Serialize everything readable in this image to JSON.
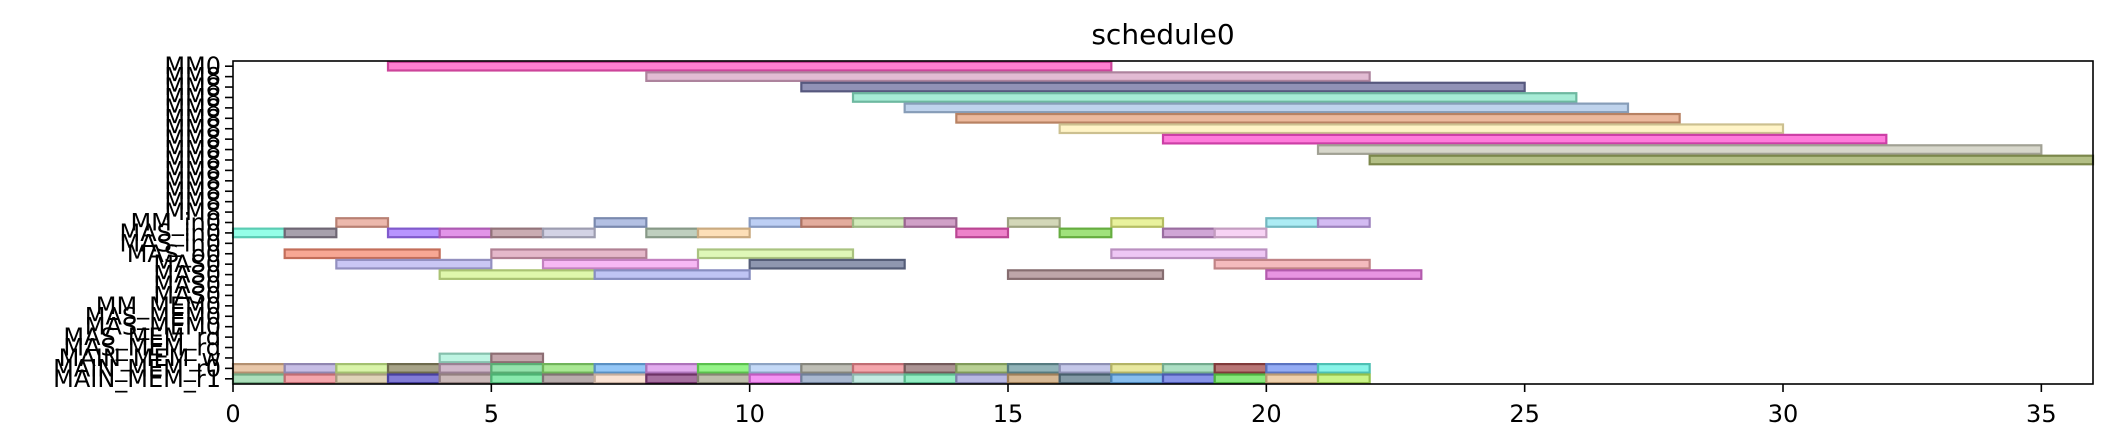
{
  "chart_data": {
    "type": "gantt",
    "title": "schedule0",
    "xlabel": "",
    "ylabel": "",
    "xlim": [
      0,
      36
    ],
    "x_ticks": [
      0,
      5,
      10,
      15,
      20,
      25,
      30,
      35
    ],
    "grid": false,
    "legend": "none",
    "rows_top_to_bottom": [
      "MM0",
      "MM8",
      "MM8",
      "MM8",
      "MM8",
      "MM8",
      "MM8",
      "MM8",
      "MM8",
      "MM8",
      "MM8",
      "MM8",
      "MM8",
      "MM8",
      "MM8",
      "MM_in0",
      "MAS_in0",
      "MAS_in0",
      "MAS_o0",
      "MAS0",
      "MAS0",
      "MAS0",
      "MAS0",
      "MM_MEM0",
      "MAS_MEM0",
      "MAS_MEM0",
      "MAS_MEM_rd",
      "MAS_MEM_rd",
      "MAIN_MEM_w",
      "MAIN_MEM_r0",
      "MAIN_MEM_r1"
    ],
    "tasks": [
      {
        "row": 0,
        "start": 3,
        "end": 17,
        "color": "#ff55c0"
      },
      {
        "row": 1,
        "start": 8,
        "end": 22,
        "color": "#d8a4c4"
      },
      {
        "row": 2,
        "start": 11,
        "end": 25,
        "color": "#6c6e9e"
      },
      {
        "row": 3,
        "start": 12,
        "end": 26,
        "color": "#8ae6c8"
      },
      {
        "row": 4,
        "start": 13,
        "end": 27,
        "color": "#a9c4e6"
      },
      {
        "row": 5,
        "start": 14,
        "end": 28,
        "color": "#e6a27c"
      },
      {
        "row": 6,
        "start": 16,
        "end": 30,
        "color": "#fff0b4"
      },
      {
        "row": 7,
        "start": 18,
        "end": 32,
        "color": "#ff4fcf"
      },
      {
        "row": 8,
        "start": 21,
        "end": 35,
        "color": "#c9c9b9"
      },
      {
        "row": 9,
        "start": 22,
        "end": 36,
        "color": "#9aa95e"
      },
      {
        "row": 15,
        "start": 2,
        "end": 3,
        "color": "#e6a090"
      },
      {
        "row": 15,
        "start": 7,
        "end": 8,
        "color": "#99abd9"
      },
      {
        "row": 15,
        "start": 10,
        "end": 11,
        "color": "#a7bff0"
      },
      {
        "row": 15,
        "start": 11,
        "end": 12,
        "color": "#d9907c"
      },
      {
        "row": 15,
        "start": 12,
        "end": 13,
        "color": "#c4e6a4"
      },
      {
        "row": 15,
        "start": 13,
        "end": 14,
        "color": "#c080b4"
      },
      {
        "row": 15,
        "start": 15,
        "end": 16,
        "color": "#c4caa0"
      },
      {
        "row": 15,
        "start": 17,
        "end": 18,
        "color": "#e2ee7c"
      },
      {
        "row": 15,
        "start": 20,
        "end": 21,
        "color": "#90e6f0"
      },
      {
        "row": 15,
        "start": 21,
        "end": 22,
        "color": "#c4a4ee"
      },
      {
        "row": 16,
        "start": 0,
        "end": 1,
        "color": "#70ffe0"
      },
      {
        "row": 16,
        "start": 1,
        "end": 2,
        "color": "#8a8090"
      },
      {
        "row": 16,
        "start": 3,
        "end": 4,
        "color": "#a070ff"
      },
      {
        "row": 16,
        "start": 4,
        "end": 5,
        "color": "#d870e0"
      },
      {
        "row": 16,
        "start": 5,
        "end": 6,
        "color": "#b89098"
      },
      {
        "row": 16,
        "start": 6,
        "end": 7,
        "color": "#c4c4dc"
      },
      {
        "row": 16,
        "start": 8,
        "end": 9,
        "color": "#a9bfa9"
      },
      {
        "row": 16,
        "start": 9,
        "end": 10,
        "color": "#fcd4a0"
      },
      {
        "row": 16,
        "start": 14,
        "end": 15,
        "color": "#e858b8"
      },
      {
        "row": 16,
        "start": 16,
        "end": 17,
        "color": "#80d850"
      },
      {
        "row": 16,
        "start": 18,
        "end": 19,
        "color": "#c088c8"
      },
      {
        "row": 16,
        "start": 19,
        "end": 20,
        "color": "#f4c4f0"
      },
      {
        "row": 18,
        "start": 1,
        "end": 4,
        "color": "#f48a70"
      },
      {
        "row": 18,
        "start": 5,
        "end": 8,
        "color": "#dca0b8"
      },
      {
        "row": 18,
        "start": 9,
        "end": 12,
        "color": "#d4f4a0"
      },
      {
        "row": 18,
        "start": 17,
        "end": 20,
        "color": "#e8b4f0"
      },
      {
        "row": 19,
        "start": 2,
        "end": 5,
        "color": "#b8b4f0"
      },
      {
        "row": 19,
        "start": 6,
        "end": 9,
        "color": "#f4a0f0"
      },
      {
        "row": 19,
        "start": 10,
        "end": 13,
        "color": "#6a7496"
      },
      {
        "row": 19,
        "start": 19,
        "end": 22,
        "color": "#f0a4a8"
      },
      {
        "row": 20,
        "start": 4,
        "end": 7,
        "color": "#d4f490"
      },
      {
        "row": 20,
        "start": 7,
        "end": 10,
        "color": "#a9b0f0"
      },
      {
        "row": 20,
        "start": 15,
        "end": 18,
        "color": "#a8888c"
      },
      {
        "row": 20,
        "start": 20,
        "end": 23,
        "color": "#e070d8"
      },
      {
        "row": 28,
        "start": 4,
        "end": 5,
        "color": "#a8f0d8"
      },
      {
        "row": 28,
        "start": 5,
        "end": 6,
        "color": "#b08890"
      },
      {
        "row": 29,
        "start": 0,
        "end": 1,
        "color": "#e0b48c"
      },
      {
        "row": 29,
        "start": 1,
        "end": 2,
        "color": "#b4a8dc"
      },
      {
        "row": 29,
        "start": 2,
        "end": 3,
        "color": "#ccf08c"
      },
      {
        "row": 29,
        "start": 3,
        "end": 4,
        "color": "#8a8460"
      },
      {
        "row": 29,
        "start": 4,
        "end": 5,
        "color": "#c0a0b8"
      },
      {
        "row": 29,
        "start": 5,
        "end": 6,
        "color": "#70d890"
      },
      {
        "row": 29,
        "start": 6,
        "end": 7,
        "color": "#8ce070"
      },
      {
        "row": 29,
        "start": 7,
        "end": 8,
        "color": "#70b4f4"
      },
      {
        "row": 29,
        "start": 8,
        "end": 9,
        "color": "#d890e8"
      },
      {
        "row": 29,
        "start": 9,
        "end": 10,
        "color": "#70f060"
      },
      {
        "row": 29,
        "start": 10,
        "end": 11,
        "color": "#b0ccf4"
      },
      {
        "row": 29,
        "start": 11,
        "end": 12,
        "color": "#a8a89c"
      },
      {
        "row": 29,
        "start": 12,
        "end": 13,
        "color": "#f08890"
      },
      {
        "row": 29,
        "start": 13,
        "end": 14,
        "color": "#907070"
      },
      {
        "row": 29,
        "start": 14,
        "end": 15,
        "color": "#a0c070"
      },
      {
        "row": 29,
        "start": 15,
        "end": 16,
        "color": "#6c9aa0"
      },
      {
        "row": 29,
        "start": 16,
        "end": 17,
        "color": "#b0b4e0"
      },
      {
        "row": 29,
        "start": 17,
        "end": 18,
        "color": "#e0e080"
      },
      {
        "row": 29,
        "start": 18,
        "end": 19,
        "color": "#90d4b0"
      },
      {
        "row": 29,
        "start": 19,
        "end": 20,
        "color": "#a04848"
      },
      {
        "row": 29,
        "start": 20,
        "end": 21,
        "color": "#7090f0"
      },
      {
        "row": 29,
        "start": 21,
        "end": 22,
        "color": "#60f0e0"
      },
      {
        "row": 30,
        "start": 0,
        "end": 1,
        "color": "#90d4a4"
      },
      {
        "row": 30,
        "start": 1,
        "end": 2,
        "color": "#f08890"
      },
      {
        "row": 30,
        "start": 2,
        "end": 3,
        "color": "#d4c4a0"
      },
      {
        "row": 30,
        "start": 3,
        "end": 4,
        "color": "#5a50c8"
      },
      {
        "row": 30,
        "start": 4,
        "end": 5,
        "color": "#b8a0a0"
      },
      {
        "row": 30,
        "start": 5,
        "end": 6,
        "color": "#60e090"
      },
      {
        "row": 30,
        "start": 6,
        "end": 7,
        "color": "#a09090"
      },
      {
        "row": 30,
        "start": 7,
        "end": 8,
        "color": "#f8d8c4"
      },
      {
        "row": 30,
        "start": 8,
        "end": 9,
        "color": "#8a4080"
      },
      {
        "row": 30,
        "start": 9,
        "end": 10,
        "color": "#a8a890"
      },
      {
        "row": 30,
        "start": 10,
        "end": 11,
        "color": "#f070f0"
      },
      {
        "row": 30,
        "start": 11,
        "end": 12,
        "color": "#8ca0c0"
      },
      {
        "row": 30,
        "start": 12,
        "end": 13,
        "color": "#b0e4d8"
      },
      {
        "row": 30,
        "start": 13,
        "end": 14,
        "color": "#70e8b0"
      },
      {
        "row": 30,
        "start": 14,
        "end": 15,
        "color": "#a0a0d8"
      },
      {
        "row": 30,
        "start": 15,
        "end": 16,
        "color": "#c8a070"
      },
      {
        "row": 30,
        "start": 16,
        "end": 17,
        "color": "#5a7888"
      },
      {
        "row": 30,
        "start": 17,
        "end": 18,
        "color": "#60a8e8"
      },
      {
        "row": 30,
        "start": 18,
        "end": 19,
        "color": "#6070e0"
      },
      {
        "row": 30,
        "start": 19,
        "end": 20,
        "color": "#60e050"
      },
      {
        "row": 30,
        "start": 20,
        "end": 21,
        "color": "#e8c090"
      },
      {
        "row": 30,
        "start": 21,
        "end": 22,
        "color": "#b8f060"
      }
    ]
  }
}
